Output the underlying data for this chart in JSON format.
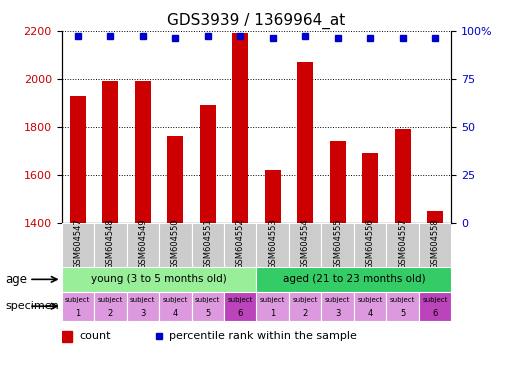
{
  "title": "GDS3939 / 1369964_at",
  "samples": [
    "GSM604547",
    "GSM604548",
    "GSM604549",
    "GSM604550",
    "GSM604551",
    "GSM604552",
    "GSM604553",
    "GSM604554",
    "GSM604555",
    "GSM604556",
    "GSM604557",
    "GSM604558"
  ],
  "counts": [
    1930,
    1990,
    1990,
    1760,
    1890,
    2190,
    1620,
    2070,
    1740,
    1690,
    1790,
    1450
  ],
  "percentiles": [
    97,
    97,
    97,
    96,
    97,
    97,
    96,
    97,
    96,
    96,
    96,
    96
  ],
  "ylim_left": [
    1400,
    2200
  ],
  "ylim_right": [
    0,
    100
  ],
  "yticks_left": [
    1400,
    1600,
    1800,
    2000,
    2200
  ],
  "yticks_right": [
    0,
    25,
    50,
    75,
    100
  ],
  "bar_color": "#cc0000",
  "dot_color": "#0000cc",
  "age_young_label": "young (3 to 5 months old)",
  "age_aged_label": "aged (21 to 23 months old)",
  "age_young_color": "#99ee99",
  "age_aged_color": "#33cc66",
  "specimen_light_color": "#dd99dd",
  "specimen_dark_color": "#bb44bb",
  "specimen_numbers": [
    1,
    2,
    3,
    4,
    5,
    6,
    1,
    2,
    3,
    4,
    5,
    6
  ],
  "specimen_dark_indices": [
    5,
    11
  ],
  "legend_count_color": "#cc0000",
  "legend_dot_color": "#0000cc",
  "background_color": "#ffffff",
  "xticklabel_bg": "#cccccc",
  "bar_width": 0.5,
  "figsize": [
    5.13,
    3.84
  ],
  "dpi": 100
}
